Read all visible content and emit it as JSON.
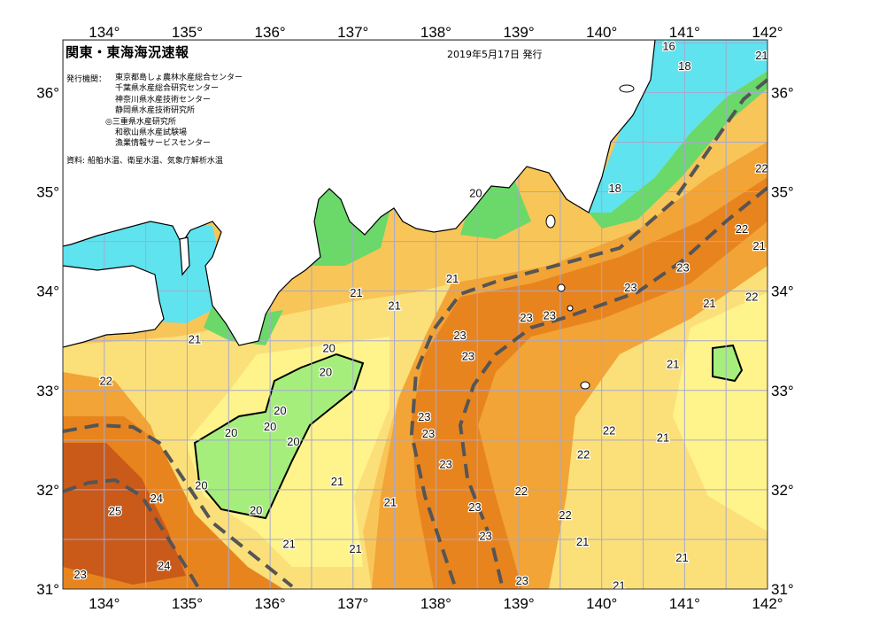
{
  "header": {
    "title": "関東・東海海況速報",
    "date": "2019年5月17日 発行",
    "issuer_label": "発行機関：",
    "issuers": [
      "東京都島しょ農林水産総合センター",
      "千葉県水産総合研究センター",
      "神奈川県水産技術センター",
      "静岡県水産技術研究所",
      "◎三重県水産研究所",
      "和歌山県水産試験場",
      "漁業情報サービスセンター"
    ],
    "source": "資料: 船舶水温、衛星水温、気象庁解析水温"
  },
  "map": {
    "type": "sea surface temperature contour map",
    "lon_range": [
      133.5,
      142
    ],
    "lat_range": [
      31,
      36.53
    ],
    "lon_ticks": [
      "134°",
      "135°",
      "136°",
      "137°",
      "138°",
      "139°",
      "140°",
      "141°",
      "142°"
    ],
    "lat_ticks": [
      "31°",
      "32°",
      "33°",
      "34°",
      "35°",
      "36°"
    ],
    "grid_step_deg": 0.5,
    "colors": {
      "land": "#ffffff",
      "cold_cyan": "#5fe3ee",
      "green": "#a6ee7c",
      "coastal_green": "#6bd86a",
      "pale_yellow": "#fff38c",
      "yellow": "#fbe07a",
      "light_orange": "#f8c558",
      "orange": "#f2a436",
      "dark_orange": "#e8841e",
      "deep_orange": "#c95a1a",
      "kuroshio_axis": "#555555",
      "grid": "#a6a8d0"
    },
    "contour_labels": [
      {
        "text": "16",
        "lon": 140.81,
        "lat": 36.47
      },
      {
        "text": "18",
        "lon": 141.0,
        "lat": 36.27
      },
      {
        "text": "21",
        "lon": 141.93,
        "lat": 36.38
      },
      {
        "text": "22",
        "lon": 141.93,
        "lat": 35.24
      },
      {
        "text": "18",
        "lon": 140.16,
        "lat": 35.04
      },
      {
        "text": "20",
        "lon": 138.48,
        "lat": 34.99
      },
      {
        "text": "22",
        "lon": 141.69,
        "lat": 34.63
      },
      {
        "text": "21",
        "lon": 141.9,
        "lat": 34.46
      },
      {
        "text": "23",
        "lon": 140.98,
        "lat": 34.24
      },
      {
        "text": "21",
        "lon": 138.2,
        "lat": 34.13
      },
      {
        "text": "21",
        "lon": 137.04,
        "lat": 33.99
      },
      {
        "text": "21",
        "lon": 137.5,
        "lat": 33.86
      },
      {
        "text": "23",
        "lon": 140.35,
        "lat": 34.04
      },
      {
        "text": "21",
        "lon": 141.3,
        "lat": 33.88
      },
      {
        "text": "22",
        "lon": 141.81,
        "lat": 33.95
      },
      {
        "text": "23",
        "lon": 139.09,
        "lat": 33.74
      },
      {
        "text": "23",
        "lon": 139.37,
        "lat": 33.76
      },
      {
        "text": "23",
        "lon": 138.29,
        "lat": 33.56
      },
      {
        "text": "21",
        "lon": 135.09,
        "lat": 33.52
      },
      {
        "text": "20",
        "lon": 136.71,
        "lat": 33.43
      },
      {
        "text": "23",
        "lon": 138.39,
        "lat": 33.35
      },
      {
        "text": "20",
        "lon": 136.67,
        "lat": 33.19
      },
      {
        "text": "21",
        "lon": 140.86,
        "lat": 33.27
      },
      {
        "text": "22",
        "lon": 134.02,
        "lat": 33.1
      },
      {
        "text": "20",
        "lon": 136.12,
        "lat": 32.8
      },
      {
        "text": "20",
        "lon": 136.0,
        "lat": 32.64
      },
      {
        "text": "20",
        "lon": 135.53,
        "lat": 32.58
      },
      {
        "text": "20",
        "lon": 136.28,
        "lat": 32.49
      },
      {
        "text": "23",
        "lon": 137.86,
        "lat": 32.74
      },
      {
        "text": "23",
        "lon": 137.91,
        "lat": 32.57
      },
      {
        "text": "22",
        "lon": 140.09,
        "lat": 32.6
      },
      {
        "text": "21",
        "lon": 140.74,
        "lat": 32.53
      },
      {
        "text": "22",
        "lon": 139.78,
        "lat": 32.36
      },
      {
        "text": "23",
        "lon": 138.12,
        "lat": 32.26
      },
      {
        "text": "21",
        "lon": 136.81,
        "lat": 32.09
      },
      {
        "text": "20",
        "lon": 135.17,
        "lat": 32.05
      },
      {
        "text": "22",
        "lon": 139.03,
        "lat": 31.99
      },
      {
        "text": "24",
        "lon": 134.63,
        "lat": 31.92
      },
      {
        "text": "21",
        "lon": 137.45,
        "lat": 31.88
      },
      {
        "text": "23",
        "lon": 138.47,
        "lat": 31.83
      },
      {
        "text": "25",
        "lon": 134.13,
        "lat": 31.79
      },
      {
        "text": "20",
        "lon": 135.83,
        "lat": 31.8
      },
      {
        "text": "22",
        "lon": 139.56,
        "lat": 31.75
      },
      {
        "text": "23",
        "lon": 138.6,
        "lat": 31.54
      },
      {
        "text": "21",
        "lon": 139.77,
        "lat": 31.48
      },
      {
        "text": "21",
        "lon": 136.23,
        "lat": 31.46
      },
      {
        "text": "21",
        "lon": 137.03,
        "lat": 31.41
      },
      {
        "text": "21",
        "lon": 140.97,
        "lat": 31.32
      },
      {
        "text": "24",
        "lon": 134.72,
        "lat": 31.24
      },
      {
        "text": "23",
        "lon": 133.71,
        "lat": 31.15
      },
      {
        "text": "23",
        "lon": 139.04,
        "lat": 31.09
      },
      {
        "text": "21",
        "lon": 140.21,
        "lat": 31.04
      }
    ]
  }
}
